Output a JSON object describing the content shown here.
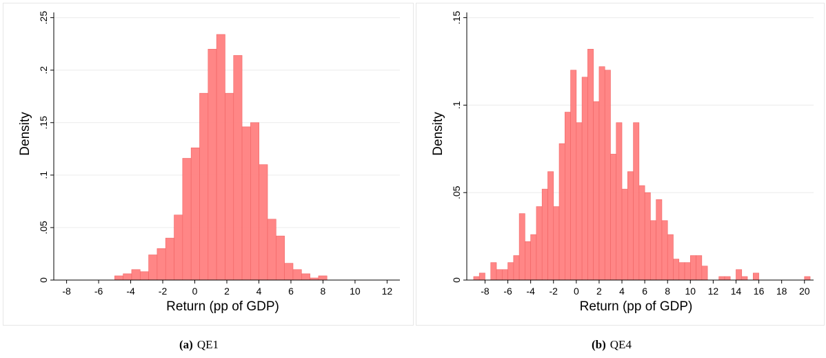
{
  "panels": [
    {
      "caption_tag": "(a)",
      "caption_text": "QE1"
    },
    {
      "caption_tag": "(b)",
      "caption_text": "QE4"
    }
  ],
  "chart_data": [
    {
      "type": "bar",
      "subtype": "histogram",
      "xlabel": "Return (pp of GDP)",
      "ylabel": "Density",
      "xlim": [
        -8.8,
        12.8
      ],
      "ylim": [
        0,
        0.255
      ],
      "xticks": [
        -8,
        -6,
        -4,
        -2,
        0,
        2,
        4,
        6,
        8,
        10,
        12
      ],
      "xtick_labels": [
        "-8",
        "-6",
        "-4",
        "-2",
        "0",
        "2",
        "4",
        "6",
        "8",
        "10",
        "12"
      ],
      "yticks": [
        0,
        0.05,
        0.1,
        0.15,
        0.2,
        0.25
      ],
      "ytick_labels": [
        "0",
        ".05",
        ".1",
        ".15",
        ".2",
        ".25"
      ],
      "grid": true,
      "bar_color": "#ff7f7f",
      "bin_width": 0.53,
      "bins": [
        {
          "x0": -5.0,
          "density": 0.004
        },
        {
          "x0": -4.47,
          "density": 0.006
        },
        {
          "x0": -3.94,
          "density": 0.01
        },
        {
          "x0": -3.41,
          "density": 0.008
        },
        {
          "x0": -2.88,
          "density": 0.024
        },
        {
          "x0": -2.35,
          "density": 0.03
        },
        {
          "x0": -1.82,
          "density": 0.04
        },
        {
          "x0": -1.29,
          "density": 0.062
        },
        {
          "x0": -0.76,
          "density": 0.116
        },
        {
          "x0": -0.23,
          "density": 0.126
        },
        {
          "x0": 0.3,
          "density": 0.178
        },
        {
          "x0": 0.83,
          "density": 0.22
        },
        {
          "x0": 1.36,
          "density": 0.234
        },
        {
          "x0": 1.89,
          "density": 0.178
        },
        {
          "x0": 2.42,
          "density": 0.214
        },
        {
          "x0": 2.95,
          "density": 0.146
        },
        {
          "x0": 3.48,
          "density": 0.15
        },
        {
          "x0": 4.01,
          "density": 0.11
        },
        {
          "x0": 4.54,
          "density": 0.058
        },
        {
          "x0": 5.07,
          "density": 0.042
        },
        {
          "x0": 5.6,
          "density": 0.016
        },
        {
          "x0": 6.13,
          "density": 0.01
        },
        {
          "x0": 6.66,
          "density": 0.006
        },
        {
          "x0": 7.19,
          "density": 0.002
        },
        {
          "x0": 7.72,
          "density": 0.004
        }
      ]
    },
    {
      "type": "bar",
      "subtype": "histogram",
      "xlabel": "Return (pp of GDP)",
      "ylabel": "Density",
      "xlim": [
        -9.6,
        20.8
      ],
      "ylim": [
        0,
        0.153
      ],
      "xticks": [
        -8,
        -6,
        -4,
        -2,
        0,
        2,
        4,
        6,
        8,
        10,
        12,
        14,
        16,
        18,
        20
      ],
      "xtick_labels": [
        "-8",
        "-6",
        "-4",
        "-2",
        "0",
        "2",
        "4",
        "6",
        "8",
        "10",
        "12",
        "14",
        "16",
        "18",
        "20"
      ],
      "yticks": [
        0,
        0.05,
        0.1,
        0.15
      ],
      "ytick_labels": [
        "0",
        ".05",
        ".1",
        ".15"
      ],
      "grid": true,
      "bar_color": "#ff7f7f",
      "bin_width": 0.5,
      "bins": [
        {
          "x0": -9.0,
          "density": 0.002
        },
        {
          "x0": -8.5,
          "density": 0.004
        },
        {
          "x0": -8.0,
          "density": 0.0
        },
        {
          "x0": -7.5,
          "density": 0.01
        },
        {
          "x0": -7.0,
          "density": 0.006
        },
        {
          "x0": -6.5,
          "density": 0.006
        },
        {
          "x0": -6.0,
          "density": 0.01
        },
        {
          "x0": -5.5,
          "density": 0.014
        },
        {
          "x0": -5.0,
          "density": 0.038
        },
        {
          "x0": -4.5,
          "density": 0.022
        },
        {
          "x0": -4.0,
          "density": 0.026
        },
        {
          "x0": -3.5,
          "density": 0.042
        },
        {
          "x0": -3.0,
          "density": 0.052
        },
        {
          "x0": -2.5,
          "density": 0.062
        },
        {
          "x0": -2.0,
          "density": 0.042
        },
        {
          "x0": -1.5,
          "density": 0.078
        },
        {
          "x0": -1.0,
          "density": 0.096
        },
        {
          "x0": -0.5,
          "density": 0.12
        },
        {
          "x0": 0.0,
          "density": 0.09
        },
        {
          "x0": 0.5,
          "density": 0.116
        },
        {
          "x0": 1.0,
          "density": 0.132
        },
        {
          "x0": 1.5,
          "density": 0.102
        },
        {
          "x0": 2.0,
          "density": 0.122
        },
        {
          "x0": 2.5,
          "density": 0.12
        },
        {
          "x0": 3.0,
          "density": 0.072
        },
        {
          "x0": 3.5,
          "density": 0.09
        },
        {
          "x0": 4.0,
          "density": 0.052
        },
        {
          "x0": 4.5,
          "density": 0.062
        },
        {
          "x0": 5.0,
          "density": 0.09
        },
        {
          "x0": 5.5,
          "density": 0.054
        },
        {
          "x0": 6.0,
          "density": 0.05
        },
        {
          "x0": 6.5,
          "density": 0.034
        },
        {
          "x0": 7.0,
          "density": 0.046
        },
        {
          "x0": 7.5,
          "density": 0.034
        },
        {
          "x0": 8.0,
          "density": 0.026
        },
        {
          "x0": 8.5,
          "density": 0.012
        },
        {
          "x0": 9.0,
          "density": 0.01
        },
        {
          "x0": 9.5,
          "density": 0.01
        },
        {
          "x0": 10.0,
          "density": 0.014
        },
        {
          "x0": 10.5,
          "density": 0.014
        },
        {
          "x0": 11.0,
          "density": 0.008
        },
        {
          "x0": 12.5,
          "density": 0.002
        },
        {
          "x0": 13.0,
          "density": 0.002
        },
        {
          "x0": 14.0,
          "density": 0.006
        },
        {
          "x0": 14.5,
          "density": 0.002
        },
        {
          "x0": 15.5,
          "density": 0.004
        },
        {
          "x0": 20.0,
          "density": 0.002
        }
      ]
    }
  ]
}
